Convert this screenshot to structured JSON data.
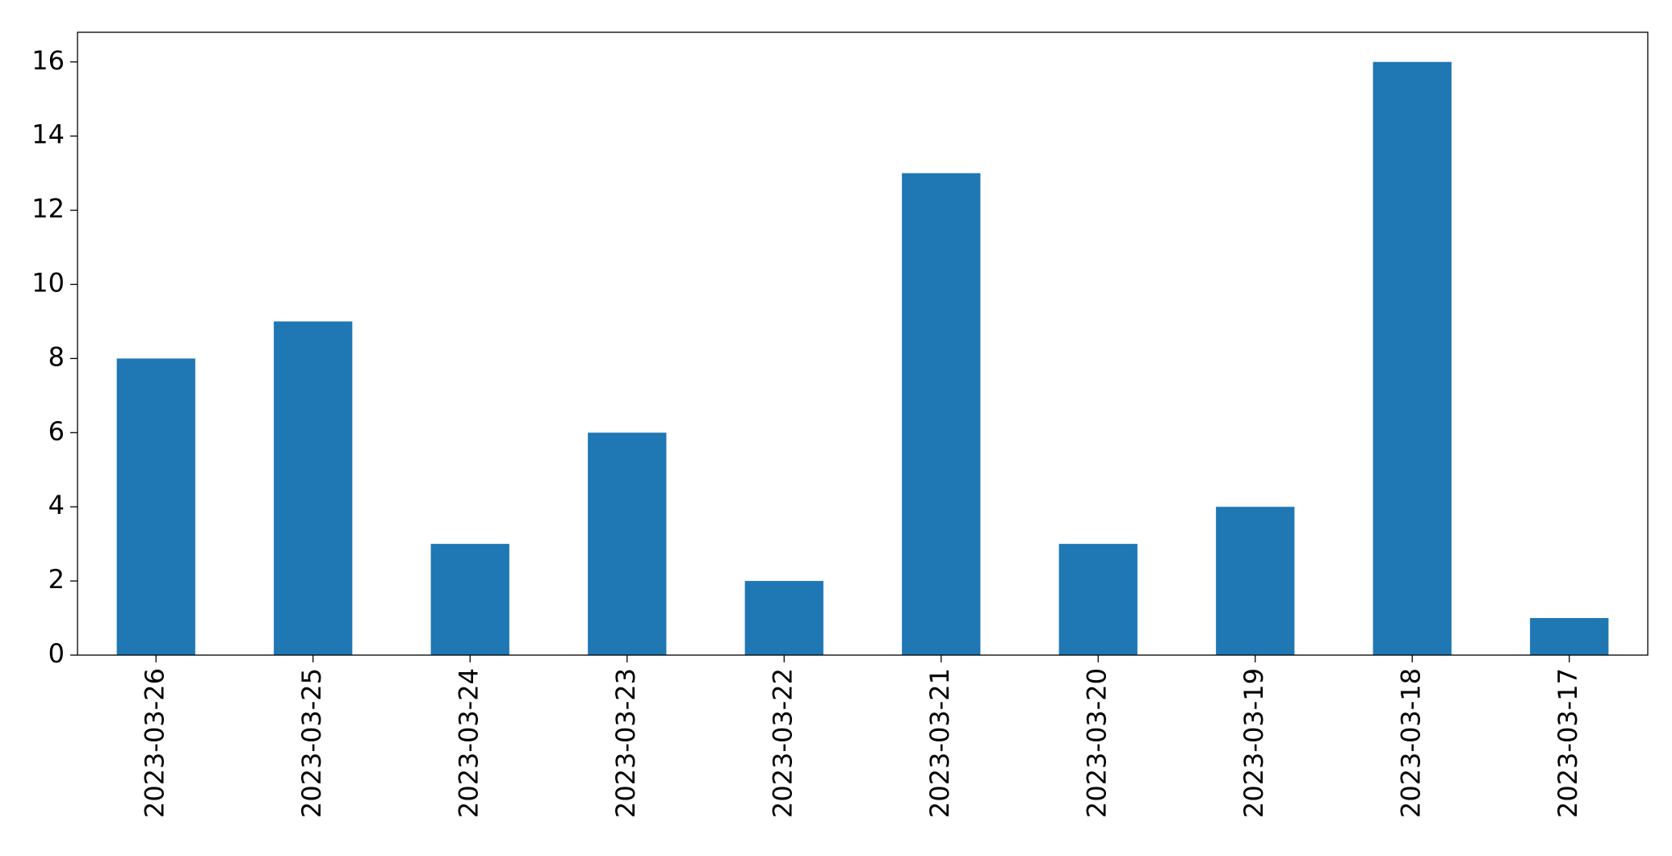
{
  "chart_data": {
    "type": "bar",
    "categories": [
      "2023-03-26",
      "2023-03-25",
      "2023-03-24",
      "2023-03-23",
      "2023-03-22",
      "2023-03-21",
      "2023-03-20",
      "2023-03-19",
      "2023-03-18",
      "2023-03-17"
    ],
    "values": [
      8,
      9,
      3,
      6,
      2,
      13,
      3,
      4,
      16,
      1
    ],
    "color": "#1f77b4",
    "ylim": [
      0,
      16.8
    ],
    "yticks": [
      0,
      2,
      4,
      6,
      8,
      10,
      12,
      14,
      16
    ],
    "grid": false
  }
}
